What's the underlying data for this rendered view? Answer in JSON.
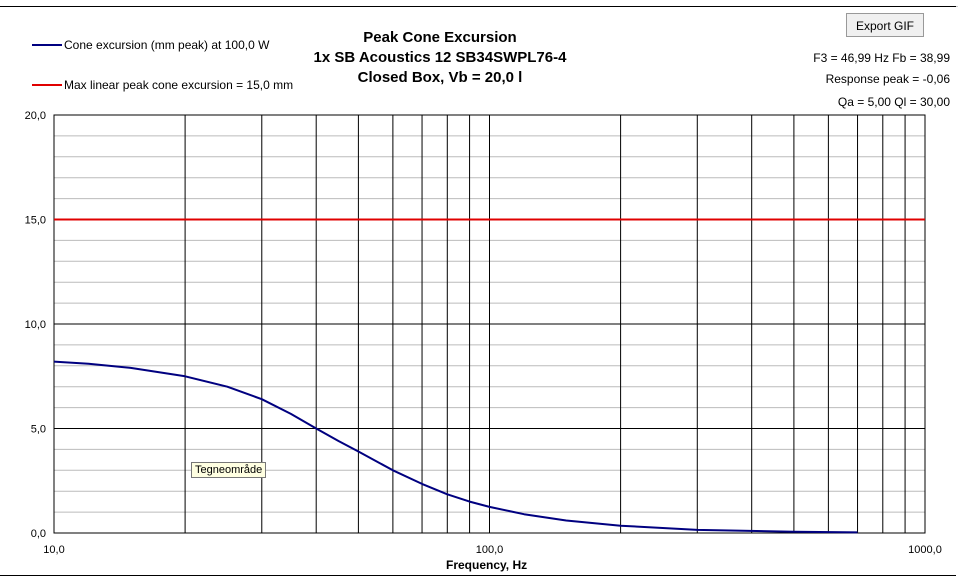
{
  "button": {
    "export": "Export GIF"
  },
  "tooltip": "Tegneområde",
  "info": {
    "f3_fb": "F3 = 46,99 Hz  Fb = 38,99",
    "response_peak": "Response peak = -0,06",
    "qa_ql": "Qa = 5,00  Ql = 30,00"
  },
  "chart_data": {
    "type": "line",
    "title": [
      "Peak Cone Excursion",
      "1x SB Acoustics 12 SB34SWPL76-4",
      "Closed Box, Vb = 20,0 l"
    ],
    "xlabel": "Frequency, Hz",
    "ylabel": "",
    "xscale": "log",
    "xlim": [
      10,
      1000
    ],
    "ylim": [
      0,
      20
    ],
    "xticks": [
      "10,0",
      "100,0",
      "1000,0"
    ],
    "yticks": [
      "0,0",
      "5,0",
      "10,0",
      "15,0",
      "20,0"
    ],
    "series": [
      {
        "name": "Cone excursion (mm peak) at 100,0 W",
        "color": "#000080",
        "x": [
          10,
          12,
          15,
          20,
          25,
          30,
          35,
          40,
          45,
          50,
          60,
          70,
          80,
          90,
          100,
          120,
          150,
          200,
          300,
          500,
          700
        ],
        "y": [
          8.2,
          8.1,
          7.9,
          7.5,
          7.0,
          6.4,
          5.7,
          5.0,
          4.4,
          3.9,
          3.0,
          2.35,
          1.85,
          1.5,
          1.25,
          0.9,
          0.6,
          0.35,
          0.15,
          0.06,
          0.03
        ]
      },
      {
        "name": "Max linear peak cone excursion = 15,0 mm",
        "color": "#e00000",
        "x": [
          10,
          1000
        ],
        "y": [
          15,
          15
        ]
      }
    ],
    "legend_position": "top-left",
    "grid": true
  }
}
